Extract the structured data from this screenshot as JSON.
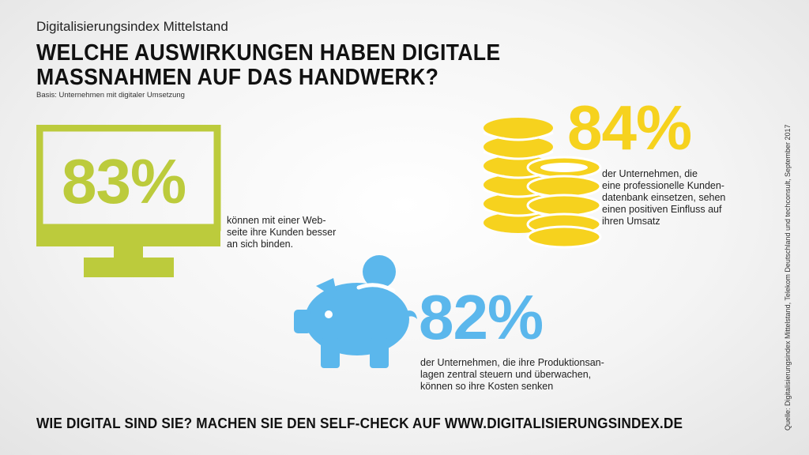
{
  "header": {
    "series_title": "Digitalisierungsindex Mittelstand",
    "headline": "WELCHE AUSWIRKUNGEN HABEN DIGITALE MASSNAHMEN AUF DAS HANDWERK?",
    "basis": "Basis: Unternehmen mit digitaler Umsetzung"
  },
  "stats": {
    "website": {
      "value": "83%",
      "description": "können mit einer Web-\nseite ihre Kunden besser\nan sich binden.",
      "icon": "monitor-icon",
      "color": "#bccb3c"
    },
    "crm": {
      "value": "84%",
      "description": "der Unternehmen, die\neine professionelle Kunden-\ndatenbank einsetzen, sehen\neinen positiven Einfluss auf\nihren Umsatz",
      "icon": "coins-icon",
      "color": "#f6d21e"
    },
    "production": {
      "value": "82%",
      "description": "der Unternehmen, die ihre Produktionsan-\nlagen zentral steuern und überwachen,\nkönnen so ihre Kosten senken",
      "icon": "piggy-bank-icon",
      "color": "#5bb7ec"
    }
  },
  "footer": {
    "cta": "WIE DIGITAL SIND SIE? MACHEN SIE DEN SELF-CHECK AUF WWW.DIGITALISIERUNGSINDEX.DE"
  },
  "source": "Quelle: Digitalisierungsindex Mittelstand, Telekom Deutschland und techconsult, September 2017"
}
